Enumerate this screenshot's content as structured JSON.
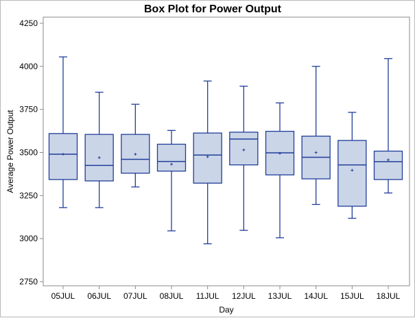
{
  "chart_data": {
    "type": "box",
    "title": "Box Plot for Power Output",
    "xlabel": "Day",
    "ylabel": "Average Power Output",
    "ylim": [
      2750,
      4250
    ],
    "yticks": [
      "2750",
      "3000",
      "3250",
      "3500",
      "3750",
      "4000",
      "4250"
    ],
    "categories": [
      "05JUL",
      "06JUL",
      "07JUL",
      "08JUL",
      "11JUL",
      "12JUL",
      "13JUL",
      "14JUL",
      "15JUL",
      "18JUL"
    ],
    "boxes": [
      {
        "category": "05JUL",
        "min": 3180,
        "q1": 3343,
        "median": 3490,
        "q3": 3610,
        "max": 4055,
        "mean": 3490
      },
      {
        "category": "06JUL",
        "min": 3180,
        "q1": 3335,
        "median": 3425,
        "q3": 3605,
        "max": 3850,
        "mean": 3470
      },
      {
        "category": "07JUL",
        "min": 3300,
        "q1": 3380,
        "median": 3460,
        "q3": 3605,
        "max": 3780,
        "mean": 3490
      },
      {
        "category": "08JUL",
        "min": 3045,
        "q1": 3392,
        "median": 3448,
        "q3": 3548,
        "max": 3628,
        "mean": 3432
      },
      {
        "category": "11JUL",
        "min": 2970,
        "q1": 3322,
        "median": 3485,
        "q3": 3613,
        "max": 3915,
        "mean": 3475
      },
      {
        "category": "12JUL",
        "min": 3048,
        "q1": 3428,
        "median": 3578,
        "q3": 3618,
        "max": 3885,
        "mean": 3515
      },
      {
        "category": "13JUL",
        "min": 3005,
        "q1": 3370,
        "median": 3498,
        "q3": 3623,
        "max": 3788,
        "mean": 3495
      },
      {
        "category": "14JUL",
        "min": 3198,
        "q1": 3347,
        "median": 3472,
        "q3": 3595,
        "max": 4000,
        "mean": 3500
      },
      {
        "category": "15JUL",
        "min": 3118,
        "q1": 3188,
        "median": 3428,
        "q3": 3570,
        "max": 3733,
        "mean": 3397
      },
      {
        "category": "18JUL",
        "min": 3265,
        "q1": 3343,
        "median": 3447,
        "q3": 3508,
        "max": 4045,
        "mean": 3457
      }
    ],
    "grid": false,
    "legend": "none",
    "colors": {
      "box_fill": "#cbd5e8",
      "box_stroke": "#1f3d99",
      "axis": "#888888",
      "text": "#000000"
    }
  }
}
